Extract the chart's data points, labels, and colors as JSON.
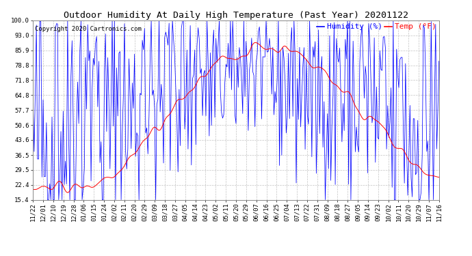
{
  "title": "Outdoor Humidity At Daily High Temperature (Past Year) 20201122",
  "copyright": "Copyright 2020 Cartronics.com",
  "legend_humidity": "Humidity (%)",
  "legend_temp": "Temp (°F)",
  "humidity_color": "blue",
  "temp_color": "red",
  "ymin": 15.4,
  "ymax": 100.0,
  "yticks": [
    15.4,
    22.4,
    29.5,
    36.5,
    43.6,
    50.6,
    57.7,
    64.8,
    71.8,
    78.8,
    85.9,
    93.0,
    100.0
  ],
  "xtick_labels": [
    "11/22",
    "12/01",
    "12/10",
    "12/19",
    "12/28",
    "01/06",
    "01/15",
    "01/24",
    "02/02",
    "02/11",
    "02/20",
    "02/29",
    "03/09",
    "03/18",
    "03/27",
    "04/05",
    "04/14",
    "04/23",
    "05/02",
    "05/11",
    "05/20",
    "05/29",
    "06/07",
    "06/16",
    "06/25",
    "07/04",
    "07/13",
    "07/22",
    "07/31",
    "08/09",
    "08/18",
    "08/27",
    "09/05",
    "09/14",
    "09/23",
    "10/02",
    "10/11",
    "10/20",
    "10/29",
    "11/07",
    "11/16"
  ],
  "n_days": 365,
  "background_color": "#ffffff",
  "grid_color": "#bbbbbb",
  "title_fontsize": 9.5,
  "tick_fontsize": 6.5,
  "legend_fontsize": 8,
  "copyright_fontsize": 6.5
}
